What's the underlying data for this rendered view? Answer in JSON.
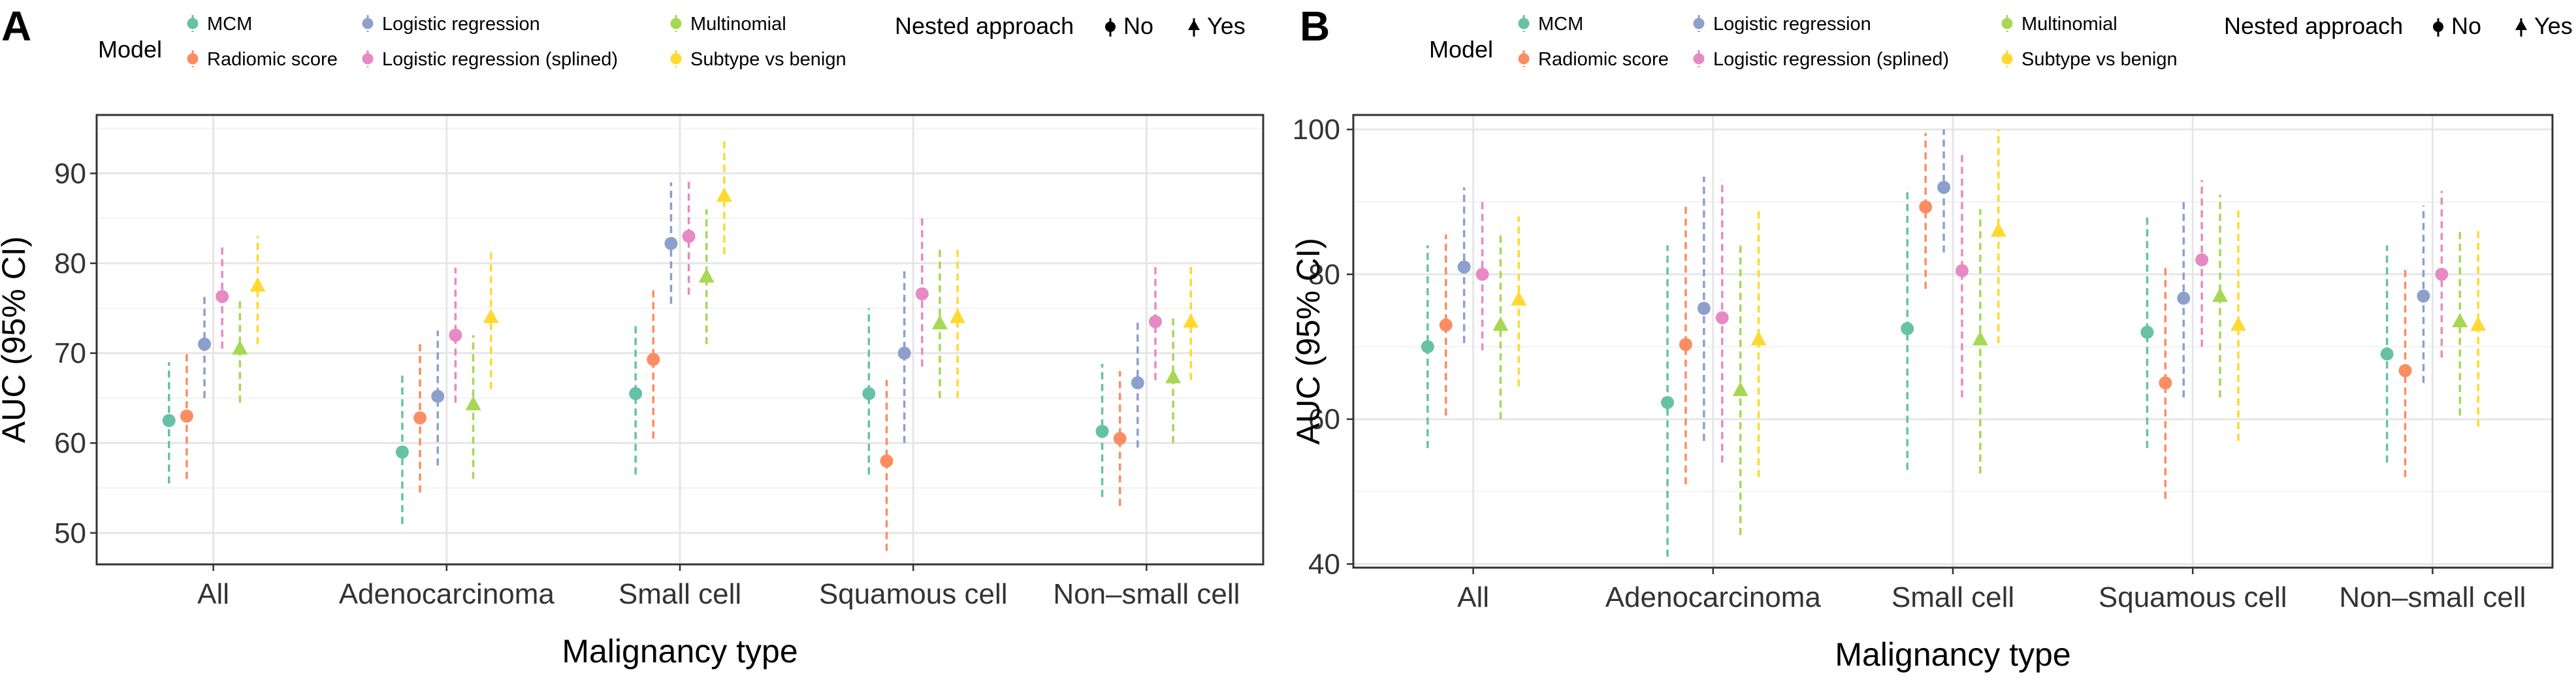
{
  "colors": {
    "MCM": "#66c2a5",
    "Radiomic score": "#fc8d62",
    "Logistic regression": "#8da0cb",
    "Logistic regression (splined)": "#e78ac3",
    "Multinomial": "#a6d854",
    "Subtype vs benign": "#ffd92f"
  },
  "legend": {
    "model_title": "Model",
    "models": [
      "MCM",
      "Radiomic score",
      "Logistic regression",
      "Logistic regression (splined)",
      "Multinomial",
      "Subtype vs benign"
    ],
    "nested_title": "Nested approach",
    "nested_no": "No",
    "nested_yes": "Yes"
  },
  "chart_data": [
    {
      "panel": "A",
      "type": "scatter",
      "xlabel": "Malignancy type",
      "ylabel": "AUC (95% CI)",
      "categories": [
        "All",
        "Adenocarcinoma",
        "Small cell",
        "Squamous cell",
        "Non–small cell"
      ],
      "ylim": [
        46.5,
        96.5
      ],
      "yticks": [
        50,
        60,
        70,
        80,
        90
      ],
      "series": [
        {
          "name": "MCM",
          "nested": false,
          "points": [
            [
              62.5,
              55.5,
              69
            ],
            [
              59,
              51,
              67.5
            ],
            [
              65.5,
              56.5,
              73.5
            ],
            [
              65.5,
              56.5,
              75
            ],
            [
              61.3,
              54,
              68.8
            ]
          ]
        },
        {
          "name": "Radiomic score",
          "nested": false,
          "points": [
            [
              63,
              56,
              70
            ],
            [
              62.8,
              54.5,
              71
            ],
            [
              69.3,
              60.5,
              77.5
            ],
            [
              58,
              48,
              67
            ],
            [
              60.5,
              53,
              68
            ]
          ]
        },
        {
          "name": "Logistic regression",
          "nested": false,
          "points": [
            [
              71,
              65,
              76.5
            ],
            [
              65.2,
              57.5,
              72.5
            ],
            [
              82.2,
              75.5,
              89
            ],
            [
              70,
              60,
              79.5
            ],
            [
              66.7,
              59.5,
              73.5
            ]
          ]
        },
        {
          "name": "Logistic regression (splined)",
          "nested": false,
          "points": [
            [
              76.3,
              70.5,
              82
            ],
            [
              72,
              64.5,
              79.5
            ],
            [
              83,
              76.5,
              89.5
            ],
            [
              76.6,
              68.5,
              85
            ],
            [
              73.5,
              67,
              80
            ]
          ]
        },
        {
          "name": "Multinomial",
          "nested": true,
          "points": [
            [
              70.5,
              64.5,
              76
            ],
            [
              64.3,
              56,
              72
            ],
            [
              78.5,
              71,
              86
            ],
            [
              73.3,
              65,
              81.5
            ],
            [
              67.3,
              60,
              74
            ]
          ]
        },
        {
          "name": "Subtype vs benign",
          "nested": true,
          "points": [
            [
              77.5,
              71,
              83
            ],
            [
              74,
              66,
              81.5
            ],
            [
              87.5,
              81,
              94
            ],
            [
              74,
              65,
              82
            ],
            [
              73.5,
              67,
              80
            ]
          ]
        }
      ]
    },
    {
      "panel": "B",
      "type": "scatter",
      "xlabel": "Malignancy type",
      "ylabel": "AUC (95% CI)",
      "categories": [
        "All",
        "Adenocarcinoma",
        "Small cell",
        "Squamous cell",
        "Non–small cell"
      ],
      "ylim": [
        39.5,
        102
      ],
      "yticks": [
        40,
        60,
        80,
        100
      ],
      "series": [
        {
          "name": "MCM",
          "nested": false,
          "points": [
            [
              70,
              56,
              84
            ],
            [
              62.3,
              41,
              84
            ],
            [
              72.5,
              53,
              92
            ],
            [
              72,
              56,
              88
            ],
            [
              69,
              54,
              84
            ]
          ]
        },
        {
          "name": "Radiomic score",
          "nested": false,
          "points": [
            [
              73,
              60.5,
              85.5
            ],
            [
              70.3,
              51,
              89.5
            ],
            [
              89.3,
              78,
              99.5
            ],
            [
              65,
              49,
              81
            ],
            [
              66.7,
              52,
              81
            ]
          ]
        },
        {
          "name": "Logistic regression",
          "nested": false,
          "points": [
            [
              81,
              70.5,
              92
            ],
            [
              75.3,
              57,
              93.5
            ],
            [
              92,
              83,
              100
            ],
            [
              76.7,
              63,
              90.5
            ],
            [
              77,
              65,
              89.5
            ]
          ]
        },
        {
          "name": "Logistic regression (splined)",
          "nested": false,
          "points": [
            [
              80,
              69.5,
              90.5
            ],
            [
              74,
              54,
              93
            ],
            [
              80.5,
              63,
              97
            ],
            [
              82,
              70,
              93
            ],
            [
              80,
              68.5,
              91.5
            ]
          ]
        },
        {
          "name": "Multinomial",
          "nested": true,
          "points": [
            [
              73,
              60,
              86
            ],
            [
              64,
              44,
              84.5
            ],
            [
              71,
              52.5,
              89
            ],
            [
              77,
              63,
              91
            ],
            [
              73.5,
              60.5,
              86.5
            ]
          ]
        },
        {
          "name": "Subtype vs benign",
          "nested": true,
          "points": [
            [
              76.5,
              64.5,
              88
            ],
            [
              71,
              52,
              89
            ],
            [
              86,
              70.5,
              100
            ],
            [
              73,
              57,
              89
            ],
            [
              73,
              59,
              86.5
            ]
          ]
        }
      ]
    }
  ]
}
